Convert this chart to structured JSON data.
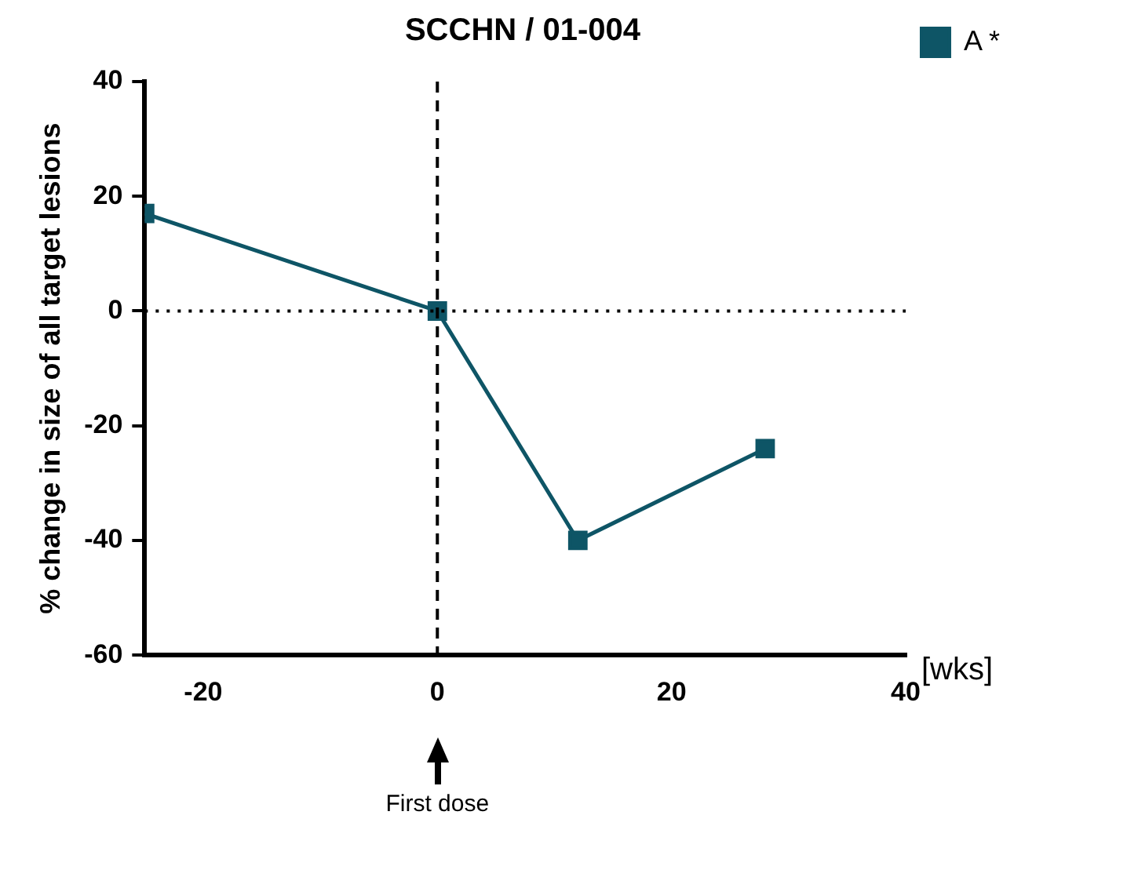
{
  "chart_data": {
    "type": "line",
    "title": "SCCHN / 01-004",
    "xlabel": "[wks]",
    "ylabel": "% change in size of all target lesions",
    "x": [
      -25,
      0,
      12,
      28
    ],
    "series": [
      {
        "name": "A *",
        "color": "#0e5566",
        "values": [
          17,
          0,
          -40,
          -24
        ]
      }
    ],
    "xlim": [
      -25,
      40
    ],
    "xticks": [
      -20,
      0,
      20,
      40
    ],
    "ylim": [
      -60,
      40
    ],
    "yticks": [
      -60,
      -40,
      -20,
      0,
      20,
      40
    ],
    "ref_lines": [
      {
        "axis": "y",
        "value": 0,
        "line_style": "dotted",
        "color": "#000000"
      },
      {
        "axis": "x",
        "value": 0,
        "line_style": "dashed",
        "color": "#000000"
      }
    ],
    "annotations": [
      "First dose"
    ],
    "grid": false,
    "legend": "top right",
    "marker": "square",
    "line_style": "solid"
  }
}
